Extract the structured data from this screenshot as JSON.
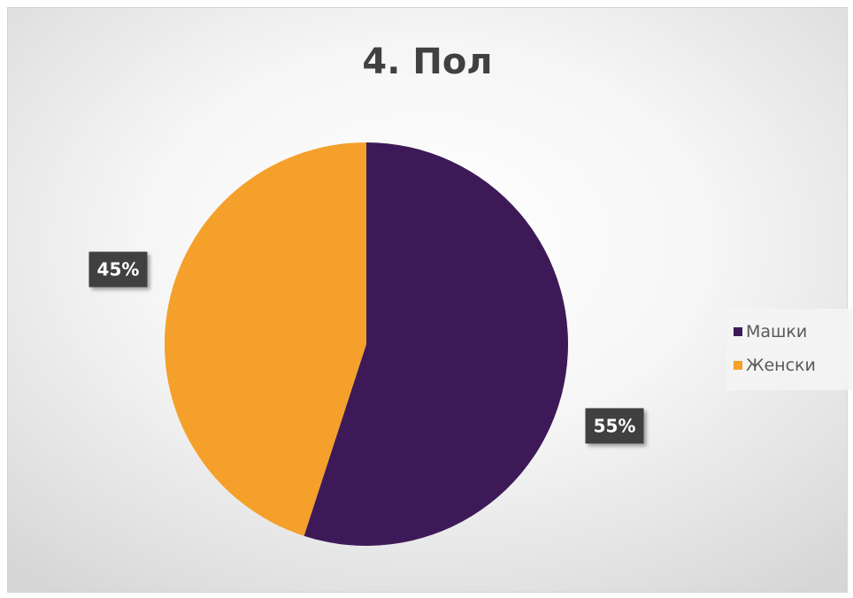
{
  "chart_data": {
    "type": "pie",
    "title": "4. Пол",
    "slices": [
      {
        "label": "Машки",
        "value": 55,
        "data_label": "55%",
        "color": "#3d1a57"
      },
      {
        "label": "Женски",
        "value": 45,
        "data_label": "45%",
        "color": "#f5a02a"
      }
    ],
    "start_angle": "12 o'clock",
    "direction": "clockwise",
    "legend": {
      "position": "right",
      "items": [
        "Машки",
        "Женски"
      ]
    },
    "data_label_style": {
      "background": "#404040",
      "color": "#ffffff"
    }
  }
}
